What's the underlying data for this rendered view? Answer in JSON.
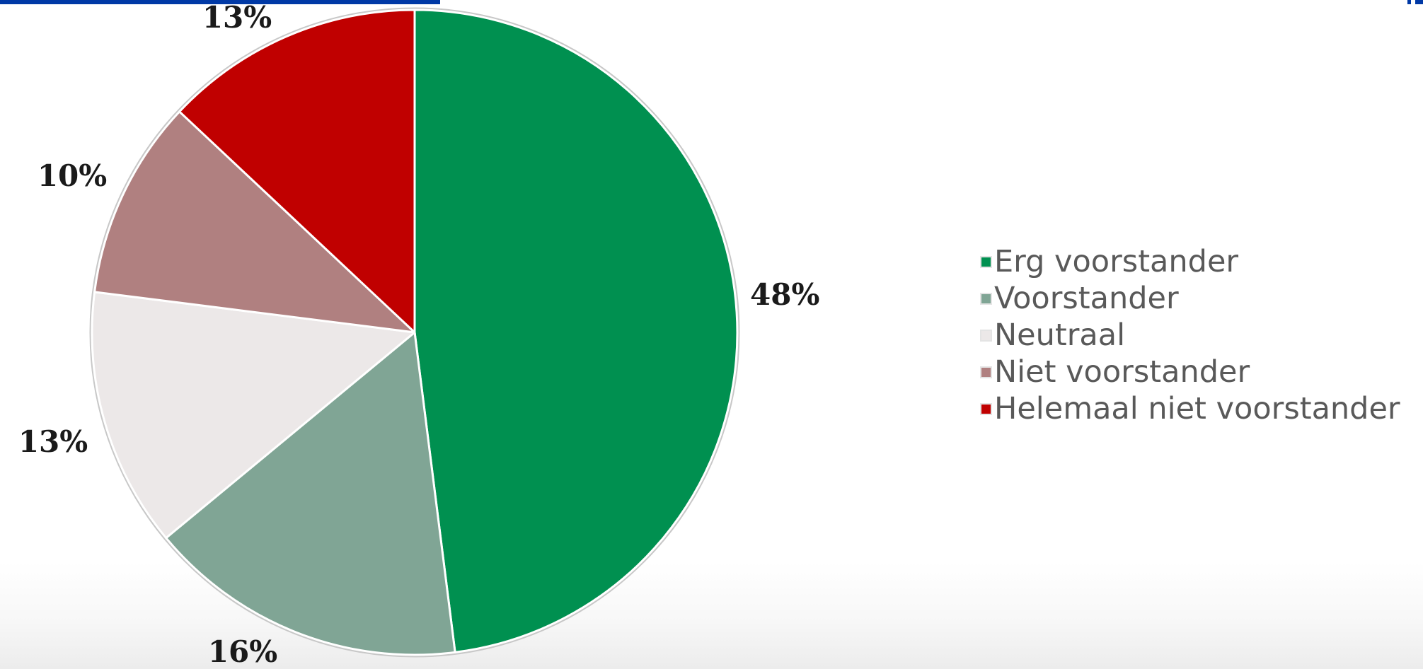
{
  "colors": {
    "top_bar": "#0039a6",
    "corner_mark": "#0039a6",
    "slice_border": "#ffffff",
    "pie_outline": "#c8c8c8"
  },
  "chart_data": {
    "type": "pie",
    "title": "",
    "categories": [
      "Erg voorstander",
      "Voorstander",
      "Neutraal",
      "Niet voorstander",
      "Helemaal niet voorstander"
    ],
    "values": [
      48,
      16,
      13,
      10,
      13
    ],
    "data_labels": [
      "48%",
      "16%",
      "13%",
      "10%",
      "13%"
    ],
    "colors": [
      "#009050",
      "#80a595",
      "#ece8e8",
      "#b08080",
      "#c00000"
    ],
    "start_angle_deg": 0,
    "direction": "clockwise",
    "legend": {
      "position": "right",
      "entries": [
        "Erg voorstander",
        "Voorstander",
        "Neutraal",
        "Niet voorstander",
        "Helemaal niet voorstander"
      ]
    }
  }
}
